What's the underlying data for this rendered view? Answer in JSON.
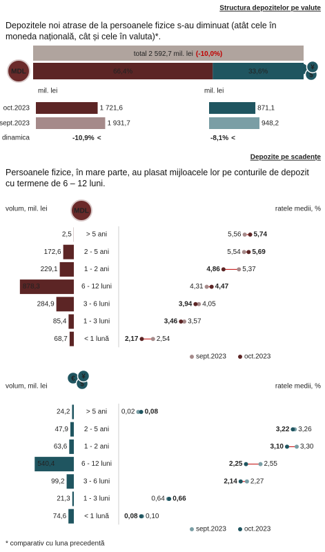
{
  "header": {
    "title": "Structura depozitelor pe valute",
    "text": "Depozitele noi atrase de la persoanele fizice s-au diminuat (atât cele în moneda națională, cât și cele în valuta)*."
  },
  "icons": {
    "mdl": "MDL",
    "fx": [
      "€",
      "$",
      "¥"
    ]
  },
  "total": {
    "label": "total 2 592,7 mil. lei",
    "change": "(-10,0%)"
  },
  "shares": {
    "values": [
      66.4,
      33.6
    ],
    "value_labels": [
      "66,4%",
      "33,6%"
    ],
    "colors": [
      "#5c2525",
      "#1f5560"
    ]
  },
  "comparison": {
    "unit": "mil. lei",
    "rows": [
      "oct.2023",
      "sept.2023",
      "dinamica"
    ],
    "change_arrow": "<",
    "mdl": {
      "values": [
        1721.6,
        1931.7
      ],
      "value_labels": [
        "1 721,6",
        "1 931,7"
      ],
      "colors": [
        "#5c2525",
        "#a58a8a"
      ],
      "change": {
        "value": -10.9,
        "label": "-10,9%"
      }
    },
    "fx": {
      "values": [
        871.1,
        948.2
      ],
      "value_labels": [
        "871,1",
        "948,2"
      ],
      "colors": [
        "#1f5560",
        "#7a9ea5"
      ],
      "change": {
        "value": -8.1,
        "label": "-8,1%"
      }
    }
  },
  "section2": {
    "title": "Depozite pe scadențe",
    "text": "Persoanele fizice, în mare parte, au plasat mijloacele lor pe conturile de depozit cu termene de 6 – 12 luni."
  },
  "categories": [
    "> 5 ani",
    "2 - 5 ani",
    "1 - 2 ani",
    "6 - 12 luni",
    "3 - 6 luni",
    "1 - 3 luni",
    "< 1 lună"
  ],
  "legend": [
    "sept.2023",
    "oct.2023"
  ],
  "mdl_maturity": {
    "volume_label": "volum, mil. lei",
    "rate_label": "ratele medii, %",
    "colors": [
      "#5c2525",
      "#a58a8a"
    ],
    "volumes": [
      2.5,
      172.6,
      229.1,
      878.3,
      284.9,
      85.4,
      68.7
    ],
    "volume_labels": [
      "2,5",
      "172,6",
      "229,1",
      "878,3",
      "284,9",
      "85,4",
      "68,7"
    ],
    "rates_sept": [
      5.56,
      5.54,
      5.37,
      4.31,
      4.05,
      3.57,
      2.54
    ],
    "rates_sept_labels": [
      "5,56",
      "5,54",
      "5,37",
      "4,31",
      "4,05",
      "3,57",
      "2,54"
    ],
    "rates_oct": [
      5.74,
      5.69,
      4.86,
      4.47,
      3.94,
      3.46,
      2.17
    ],
    "rates_oct_labels": [
      "5,74",
      "5,69",
      "4,86",
      "4,47",
      "3,94",
      "3,46",
      "2,17"
    ]
  },
  "fx_maturity": {
    "volume_label": "volum, mil. lei",
    "rate_label": "ratele medii, %",
    "colors": [
      "#1f5560",
      "#7a9ea5"
    ],
    "volumes": [
      24.2,
      47.9,
      63.6,
      540.4,
      99.2,
      21.3,
      74.6
    ],
    "volume_labels": [
      "24,2",
      "47,9",
      "63,6",
      "540,4",
      "99,2",
      "21,3",
      "74,6"
    ],
    "rates_sept": [
      0.02,
      3.26,
      3.3,
      2.55,
      2.27,
      0.64,
      0.1
    ],
    "rates_sept_labels": [
      "0,02",
      "3,26",
      "3,30",
      "2,55",
      "2,27",
      "0,64",
      "0,10"
    ],
    "rates_oct": [
      0.08,
      3.22,
      3.1,
      2.25,
      2.14,
      0.66,
      0.08
    ],
    "rates_oct_labels": [
      "0,08",
      "3,22",
      "3,10",
      "2,25",
      "2,14",
      "0,66",
      "0,08"
    ]
  },
  "footnote": "* comparativ cu luna precedentă"
}
